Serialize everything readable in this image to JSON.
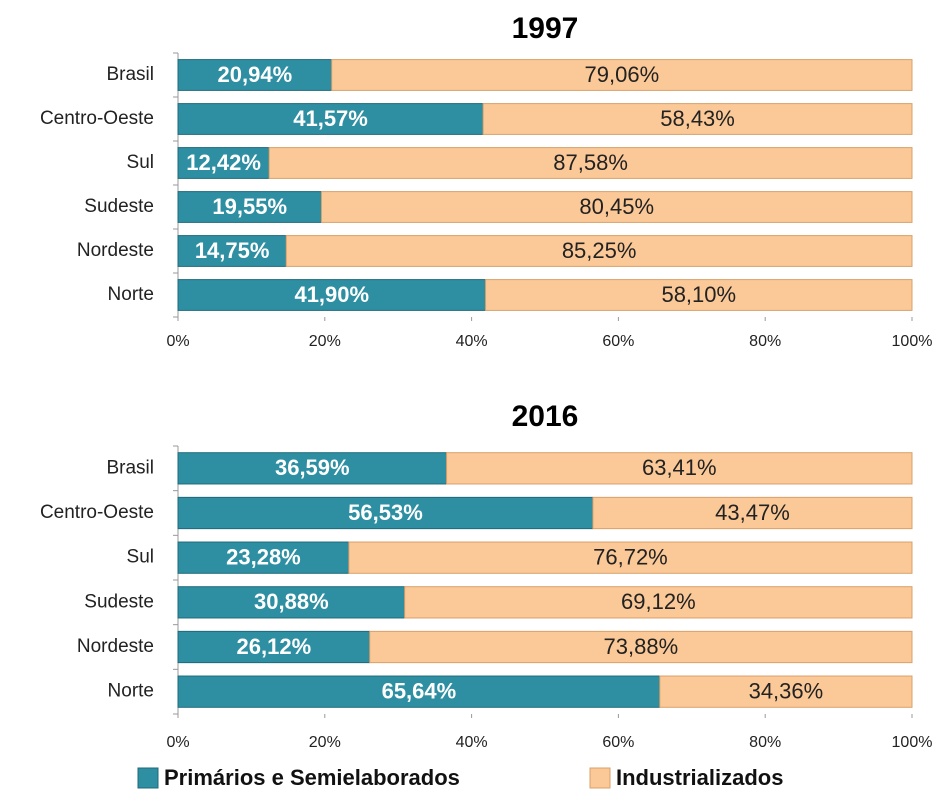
{
  "chart_data": [
    {
      "type": "bar",
      "orientation": "horizontal",
      "stacked": true,
      "title": "1997",
      "categories": [
        "Brasil",
        "Centro-Oeste",
        "Sul",
        "Sudeste",
        "Nordeste",
        "Norte"
      ],
      "series": [
        {
          "name": "Primários e Semielaborados",
          "color": "#2e8fa3",
          "values": [
            20.94,
            41.57,
            12.42,
            19.55,
            14.75,
            41.9
          ],
          "value_labels": [
            "20,94%",
            "41,57%",
            "12,42%",
            "19,55%",
            "14,75%",
            "41,90%"
          ]
        },
        {
          "name": "Industrializados",
          "color": "#fbc897",
          "values": [
            79.06,
            58.43,
            87.58,
            80.45,
            85.25,
            58.1
          ],
          "value_labels": [
            "79,06%",
            "58,43%",
            "87,58%",
            "80,45%",
            "85,25%",
            "58,10%"
          ]
        }
      ],
      "xlim": [
        0,
        100
      ],
      "xticks": [
        {
          "value": 0,
          "label": "0%"
        },
        {
          "value": 20,
          "label": "20%"
        },
        {
          "value": 40,
          "label": "40%"
        },
        {
          "value": 60,
          "label": "60%"
        },
        {
          "value": 80,
          "label": "80%"
        },
        {
          "value": 100,
          "label": "100%"
        }
      ]
    },
    {
      "type": "bar",
      "orientation": "horizontal",
      "stacked": true,
      "title": "2016",
      "categories": [
        "Brasil",
        "Centro-Oeste",
        "Sul",
        "Sudeste",
        "Nordeste",
        "Norte"
      ],
      "series": [
        {
          "name": "Primários e Semielaborados",
          "color": "#2e8fa3",
          "values": [
            36.59,
            56.53,
            23.28,
            30.88,
            26.12,
            65.64
          ],
          "value_labels": [
            "36,59%",
            "56,53%",
            "23,28%",
            "30,88%",
            "26,12%",
            "65,64%"
          ]
        },
        {
          "name": "Industrializados",
          "color": "#fbc897",
          "values": [
            63.41,
            43.47,
            76.72,
            69.12,
            73.88,
            34.36
          ],
          "value_labels": [
            "63,41%",
            "43,47%",
            "76,72%",
            "69,12%",
            "73,88%",
            "34,36%"
          ]
        }
      ],
      "xlim": [
        0,
        100
      ],
      "xticks": [
        {
          "value": 0,
          "label": "0%"
        },
        {
          "value": 20,
          "label": "20%"
        },
        {
          "value": 40,
          "label": "40%"
        },
        {
          "value": 60,
          "label": "60%"
        },
        {
          "value": 80,
          "label": "80%"
        },
        {
          "value": 100,
          "label": "100%"
        }
      ]
    }
  ]
}
